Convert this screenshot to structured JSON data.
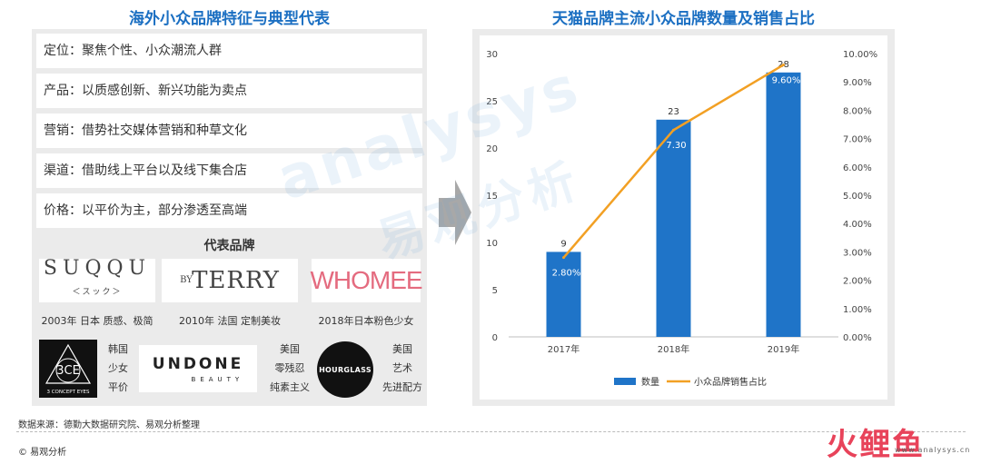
{
  "left": {
    "title": "海外小众品牌特征与典型代表",
    "features": [
      "定位：聚焦个性、小众潮流人群",
      "产品：以质感创新、新兴功能为卖点",
      "营销：借势社交媒体营销和种草文化",
      "渠道：借助线上平台以及线下集合店",
      "价格：以平价为主，部分渗透至高端"
    ],
    "rep_title": "代表品牌",
    "brands": [
      {
        "logo": "SUQQU",
        "logo_sub": "＜スック＞",
        "caption": "2003年 日本  质感、极简"
      },
      {
        "logo_by": "BY",
        "logo": "TERRY",
        "caption": "2010年  法国  定制美妆"
      },
      {
        "logo": "WHOMEE",
        "caption": "2018年日本粉色少女"
      },
      {
        "logo": "3CE",
        "logo_sub": "3 CONCEPT EYES",
        "caption_lines": [
          "韩国",
          "少女",
          "平价"
        ]
      },
      {
        "logo": "UNDONE",
        "logo_sub": "BEAUTY",
        "caption_lines": [
          "美国",
          "零残忍",
          "纯素主义"
        ]
      },
      {
        "logo": "HOURGLASS",
        "caption_lines": [
          "美国",
          "艺术",
          "先进配方"
        ]
      }
    ]
  },
  "chart_data": {
    "type": "bar",
    "title": "天猫品牌主流小众品牌数量及销售占比",
    "categories": [
      "2017年",
      "2018年",
      "2019年"
    ],
    "series": [
      {
        "name": "数量",
        "type": "bar",
        "values": [
          9,
          23,
          28
        ],
        "labels": [
          "9",
          "23",
          "28"
        ],
        "color": "#1f74c8"
      },
      {
        "name": "小众品牌销售占比",
        "type": "line",
        "axis": "right",
        "values": [
          2.8,
          7.3,
          9.6
        ],
        "labels": [
          "2.80%",
          "7.30",
          "9.60%"
        ],
        "color": "#f2a024"
      }
    ],
    "y_left": {
      "min": 0,
      "max": 30,
      "ticks": [
        "0",
        "5",
        "10",
        "15",
        "20",
        "25",
        "30"
      ]
    },
    "y_right": {
      "min": 0,
      "max": 10,
      "ticks": [
        "0.00%",
        "1.00%",
        "2.00%",
        "3.00%",
        "4.00%",
        "5.00%",
        "6.00%",
        "7.00%",
        "8.00%",
        "9.00%",
        "10.00%"
      ]
    },
    "legend_position": "bottom",
    "grid": false
  },
  "watermark": {
    "line1": "analysys",
    "line2": "易观分析"
  },
  "footer": {
    "source": "数据来源：德勤大数据研究院、易观分析整理",
    "copyright": "© 易观分析",
    "logo": "火鲤鱼",
    "url": "www.analysys.cn"
  }
}
